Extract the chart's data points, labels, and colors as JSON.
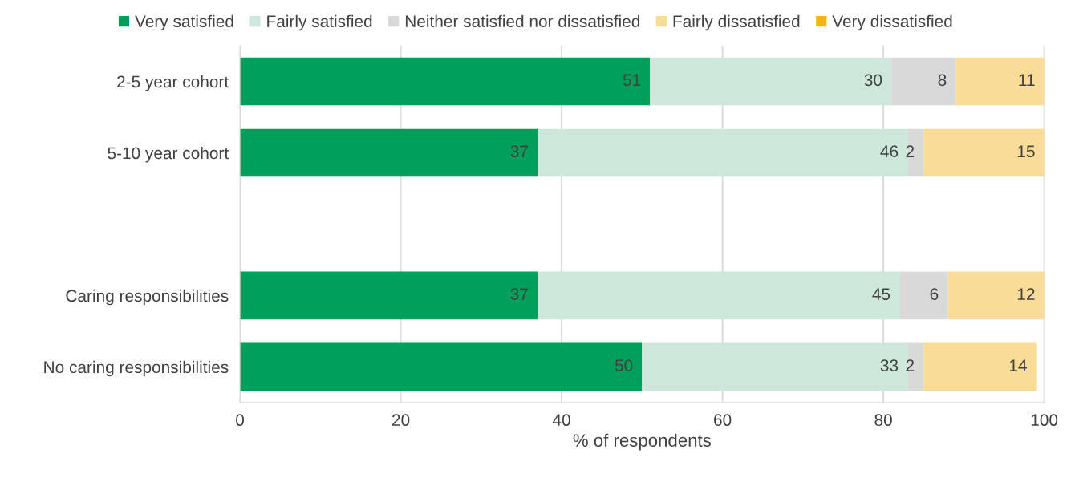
{
  "chart_data": {
    "type": "bar",
    "orientation": "horizontal",
    "stacked": true,
    "xlabel": "% of respondents",
    "categories": [
      "2-5 year cohort",
      "5-10 year cohort",
      null,
      "Caring responsibilities",
      "No caring responsibilities"
    ],
    "series": [
      {
        "name": "Very satisfied",
        "color": "#00a05a",
        "values": [
          51,
          37,
          null,
          37,
          50
        ]
      },
      {
        "name": "Fairly satisfied",
        "color": "#cde8da",
        "values": [
          30,
          46,
          null,
          45,
          33
        ]
      },
      {
        "name": "Neither satisfied nor dissatisfied",
        "color": "#d9d9d9",
        "values": [
          8,
          2,
          null,
          6,
          2
        ]
      },
      {
        "name": "Fairly dissatisfied",
        "color": "#f8dc98",
        "values": [
          11,
          15,
          null,
          12,
          14
        ]
      },
      {
        "name": "Very dissatisfied",
        "color": "#f5b70f",
        "values": [
          null,
          null,
          null,
          null,
          null
        ]
      }
    ],
    "xlim": [
      0,
      100
    ],
    "xticks": [
      0,
      20,
      40,
      60,
      80,
      100
    ],
    "grid": "x",
    "legend": "top",
    "data_labels": true
  }
}
